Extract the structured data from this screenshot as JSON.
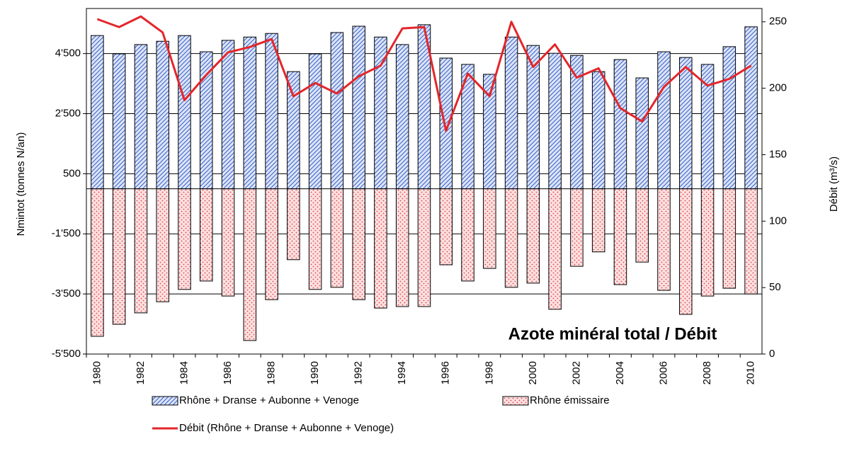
{
  "chart_data": {
    "type": "bar",
    "title": "Azote minéral total / Débit",
    "ylabel": "Nmintot (tonnes N/an)",
    "y2label": "Débit (m³/s)",
    "categories": [
      "1980",
      null,
      "1982",
      null,
      "1984",
      null,
      "1986",
      null,
      "1988",
      null,
      "1990",
      null,
      "1992",
      null,
      "1994",
      null,
      "1996",
      null,
      "1998",
      null,
      "2000",
      null,
      "2002",
      null,
      "2004",
      null,
      "2006",
      null,
      "2008",
      null,
      "2010"
    ],
    "series": [
      {
        "name": "Rhône + Dranse + Aubonne + Venoge",
        "type": "bar",
        "color": "#3a5fc8",
        "fill": "#dbe4f7",
        "values": [
          5100,
          4490,
          4800,
          4910,
          5100,
          4560,
          4940,
          5050,
          5170,
          3900,
          4490,
          5200,
          5410,
          5050,
          4800,
          5460,
          4350,
          4140,
          3810,
          5050,
          4770,
          4510,
          4440,
          3900,
          4300,
          3690,
          4560,
          4370,
          4140,
          4730,
          5390
        ]
      },
      {
        "name": "Rhône émissaire",
        "type": "bar",
        "color": "#e0484c",
        "fill": "#fbe0e0",
        "values": [
          -4910,
          -4510,
          -4130,
          -3760,
          -3350,
          -3070,
          -3570,
          -5050,
          -3690,
          -2360,
          -3350,
          -3280,
          -3690,
          -3970,
          -3920,
          -3920,
          -2530,
          -3070,
          -2650,
          -3280,
          -3140,
          -4010,
          -2580,
          -2100,
          -3190,
          -2440,
          -3380,
          -4180,
          -3570,
          -3310,
          -3500
        ]
      },
      {
        "name": "Débit (Rhône + Dranse + Aubonne + Venoge)",
        "type": "line",
        "axis": "y2",
        "color": "#e3262b",
        "values": [
          252,
          246,
          254,
          242,
          191,
          210,
          227,
          231,
          237,
          194,
          204,
          196,
          209,
          217,
          245,
          246,
          168,
          211,
          194,
          250,
          216,
          233,
          208,
          215,
          185,
          175,
          201,
          216,
          202,
          207,
          217
        ]
      }
    ],
    "ylim": [
      -5500,
      6000
    ],
    "yticks": [
      {
        "value": -5500,
        "label": "-5'500"
      },
      {
        "value": -3500,
        "label": "-3'500"
      },
      {
        "value": -1500,
        "label": "-1'500"
      },
      500,
      {
        "value": 2500,
        "label": "2'500"
      },
      {
        "value": 4500,
        "label": "4'500"
      }
    ],
    "y2lim": [
      0,
      260
    ],
    "y2ticks": [
      0,
      50,
      100,
      150,
      200,
      250
    ],
    "grid": true
  }
}
